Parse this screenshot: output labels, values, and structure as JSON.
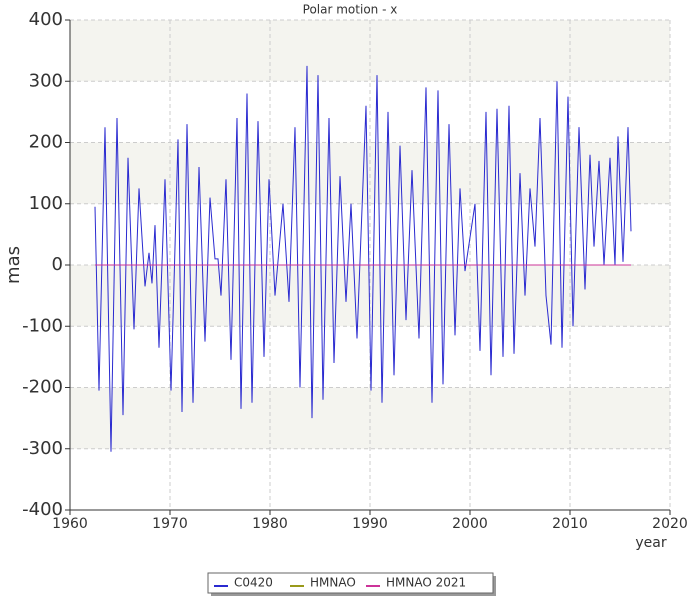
{
  "chart_data": {
    "type": "line",
    "title": "Polar motion - x",
    "x_label": "year",
    "y_label": "mas",
    "xlim": [
      1960,
      2020
    ],
    "xticks": [
      1960,
      1970,
      1980,
      1990,
      2000,
      2010,
      2020
    ],
    "ylim": [
      -400,
      400
    ],
    "yticks": [
      -400,
      -300,
      -200,
      -100,
      0,
      100,
      200,
      300,
      400
    ],
    "grid": true,
    "series": [
      {
        "name": "C0420",
        "color": "#2a2ad0",
        "x": [
          1962.5,
          1962.9,
          1963.5,
          1964.1,
          1964.7,
          1965.3,
          1965.8,
          1966.4,
          1966.9,
          1967.5,
          1967.9,
          1968.2,
          1968.5,
          1968.9,
          1969.5,
          1970.1,
          1970.8,
          1971.2,
          1971.7,
          1972.3,
          1972.9,
          1973.5,
          1974.0,
          1974.5,
          1974.8,
          1975.1,
          1975.6,
          1976.1,
          1976.7,
          1977.1,
          1977.7,
          1978.2,
          1978.8,
          1979.4,
          1979.9,
          1980.5,
          1981.3,
          1981.9,
          1982.5,
          1983.0,
          1983.7,
          1984.2,
          1984.8,
          1985.3,
          1985.9,
          1986.4,
          1987.0,
          1987.6,
          1988.1,
          1988.7,
          1989.6,
          1990.1,
          1990.7,
          1991.2,
          1991.8,
          1992.4,
          1993.0,
          1993.6,
          1994.2,
          1994.9,
          1995.6,
          1996.2,
          1996.8,
          1997.3,
          1997.9,
          1998.5,
          1999.0,
          1999.5,
          2000.5,
          2001.0,
          2001.6,
          2002.1,
          2002.7,
          2003.3,
          2003.9,
          2004.4,
          2005.0,
          2005.5,
          2006.0,
          2006.5,
          2007.0,
          2007.6,
          2008.1,
          2008.7,
          2009.2,
          2009.8,
          2010.3,
          2010.9,
          2011.5,
          2012.0,
          2012.4,
          2012.9,
          2013.4,
          2014.0,
          2014.5,
          2014.8,
          2015.3,
          2015.8,
          2016.1
        ],
        "values": [
          95,
          -205,
          225,
          -305,
          240,
          -245,
          175,
          -105,
          125,
          -35,
          20,
          -30,
          65,
          -135,
          140,
          -205,
          205,
          -240,
          230,
          -225,
          160,
          -125,
          110,
          10,
          10,
          -50,
          140,
          -155,
          240,
          -235,
          280,
          -225,
          235,
          -150,
          140,
          -50,
          100,
          -60,
          225,
          -200,
          325,
          -250,
          310,
          -220,
          240,
          -160,
          145,
          -60,
          100,
          -120,
          260,
          -205,
          310,
          -225,
          250,
          -180,
          195,
          -90,
          155,
          -120,
          290,
          -225,
          285,
          -195,
          230,
          -115,
          125,
          -10,
          100,
          -140,
          250,
          -180,
          255,
          -150,
          260,
          -145,
          150,
          -50,
          125,
          30,
          240,
          -50,
          -130,
          300,
          -135,
          275,
          -100,
          225,
          -40,
          180,
          30,
          170,
          0,
          175,
          0,
          210,
          5,
          225,
          55
        ]
      },
      {
        "name": "HMNAO",
        "color": "#99991a",
        "x": [
          1962.5,
          2016.1
        ],
        "values": [
          0,
          0
        ]
      },
      {
        "name": "HMNAO 2021",
        "color": "#cc3399",
        "x": [
          1962.5,
          2016.1
        ],
        "values": [
          0,
          0
        ]
      }
    ]
  }
}
